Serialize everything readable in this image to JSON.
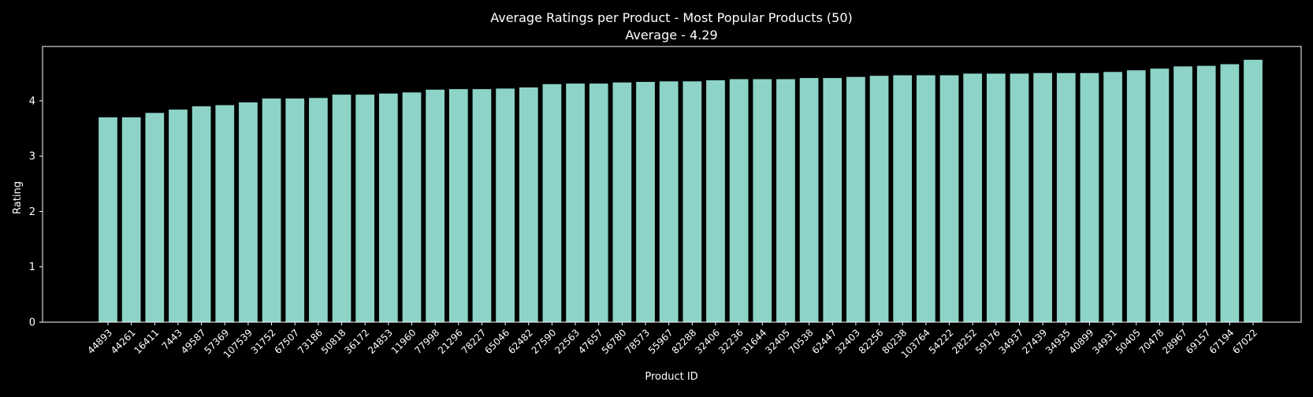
{
  "chart_data": {
    "type": "bar",
    "title": "Average Ratings per Product - Most Popular Products (50)",
    "subtitle": "Average - 4.29",
    "xlabel": "Product ID",
    "ylabel": "Rating",
    "ylim": [
      0,
      4.98
    ],
    "yticks": [
      0,
      1,
      2,
      3,
      4
    ],
    "grid": false,
    "bar_color": "#8dd3c7",
    "background_color": "#000000",
    "axis_color": "#ffffff",
    "categories": [
      "44893",
      "44261",
      "16411",
      "7443",
      "49587",
      "57369",
      "107539",
      "31752",
      "67507",
      "73186",
      "50818",
      "36172",
      "24853",
      "11960",
      "77998",
      "21296",
      "78227",
      "65046",
      "62482",
      "27590",
      "22563",
      "47657",
      "56780",
      "78573",
      "55967",
      "82288",
      "32406",
      "32236",
      "31644",
      "32405",
      "70538",
      "62447",
      "32403",
      "82256",
      "80238",
      "103764",
      "54222",
      "28252",
      "59176",
      "34937",
      "27439",
      "34935",
      "40899",
      "34931",
      "50405",
      "70478",
      "28967",
      "69157",
      "67194",
      "67022"
    ],
    "values": [
      3.7,
      3.7,
      3.78,
      3.84,
      3.9,
      3.92,
      3.97,
      4.04,
      4.04,
      4.05,
      4.11,
      4.11,
      4.13,
      4.15,
      4.2,
      4.21,
      4.21,
      4.22,
      4.24,
      4.3,
      4.31,
      4.31,
      4.33,
      4.34,
      4.35,
      4.35,
      4.37,
      4.39,
      4.39,
      4.39,
      4.41,
      4.41,
      4.43,
      4.45,
      4.46,
      4.46,
      4.46,
      4.49,
      4.49,
      4.49,
      4.5,
      4.5,
      4.5,
      4.52,
      4.55,
      4.58,
      4.62,
      4.63,
      4.66,
      4.74
    ]
  }
}
